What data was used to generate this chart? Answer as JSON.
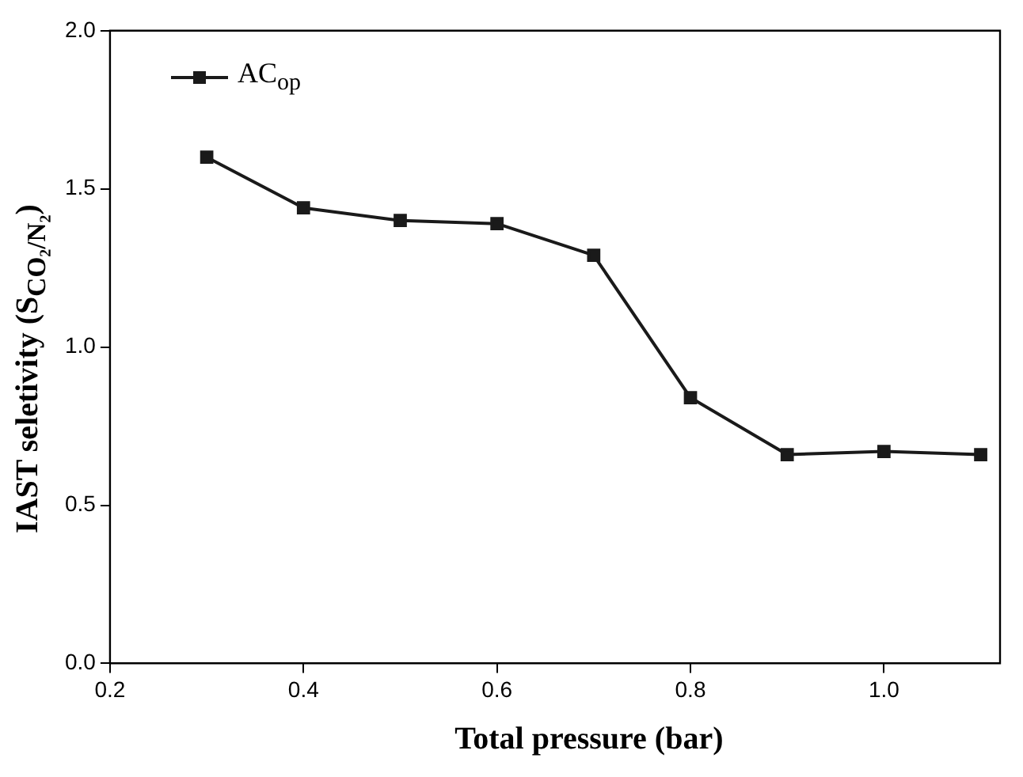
{
  "chart_data": {
    "type": "line",
    "xlabel": "Total pressure (bar)",
    "ylabel": "IAST seletivity  (S$_{CO₂/N₂}$)",
    "x": [
      0.3,
      0.4,
      0.5,
      0.6,
      0.7,
      0.8,
      0.9,
      1.0,
      1.1
    ],
    "series": [
      {
        "name": "AC$_{op}$",
        "color": "#1a1a1a",
        "values": [
          1.6,
          1.44,
          1.4,
          1.39,
          1.29,
          0.84,
          0.66,
          0.67,
          0.66
        ]
      }
    ],
    "xlim": [
      0.2,
      1.12
    ],
    "xticks": [
      0.2,
      0.4,
      0.6,
      0.8,
      {
        "value": 1,
        "label": "1.0"
      }
    ],
    "ylim": [
      0.0,
      2.0
    ],
    "yticks": [
      {
        "value": 0,
        "label": "0.0"
      },
      0.5,
      {
        "value": 1,
        "label": "1.0"
      },
      1.5,
      {
        "value": 2,
        "label": "2.0"
      }
    ],
    "marker": "square",
    "line_style": "solid",
    "grid": false,
    "legend": "top left"
  }
}
